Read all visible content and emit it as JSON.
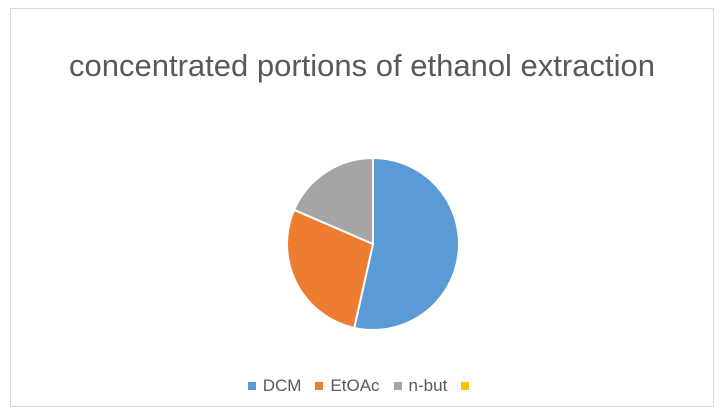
{
  "chart_data": {
    "type": "pie",
    "title": "concentrated portions of ethanol extraction",
    "categories": [
      "DCM",
      "EtOAc",
      "n-but",
      ""
    ],
    "values": [
      53.5,
      28.0,
      18.5,
      0
    ],
    "colors": [
      "#5b9bd5",
      "#ed7d31",
      "#a5a5a5",
      "#ffc000"
    ],
    "legend_position": "bottom",
    "start_angle_deg": 0,
    "direction": "clockwise"
  }
}
